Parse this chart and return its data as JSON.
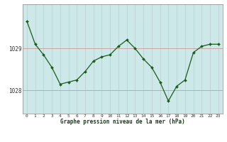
{
  "x": [
    0,
    1,
    2,
    3,
    4,
    5,
    6,
    7,
    8,
    9,
    10,
    11,
    12,
    13,
    14,
    15,
    16,
    17,
    18,
    19,
    20,
    21,
    22,
    23
  ],
  "y": [
    1029.65,
    1029.1,
    1028.85,
    1028.55,
    1028.15,
    1028.2,
    1028.25,
    1028.45,
    1028.7,
    1028.8,
    1028.85,
    1029.05,
    1029.2,
    1029.0,
    1028.75,
    1028.55,
    1028.2,
    1027.75,
    1028.1,
    1028.25,
    1028.9,
    1029.05,
    1029.1,
    1029.1
  ],
  "yticks": [
    1028,
    1029
  ],
  "xticks": [
    0,
    1,
    2,
    3,
    4,
    5,
    6,
    7,
    8,
    9,
    10,
    11,
    12,
    13,
    14,
    15,
    16,
    17,
    18,
    19,
    20,
    21,
    22,
    23
  ],
  "line_color": "#1a5c1a",
  "marker_color": "#1a5c1a",
  "bg_color": "#cce8e8",
  "plot_bg_color": "#cce8e8",
  "outer_bg": "#ffffff",
  "grid_color_v": "#bbcccc",
  "grid_color_h": "#cc9999",
  "xlabel": "Graphe pression niveau de la mer (hPa)",
  "ylim": [
    1027.45,
    1030.05
  ],
  "xlim": [
    -0.5,
    23.5
  ]
}
